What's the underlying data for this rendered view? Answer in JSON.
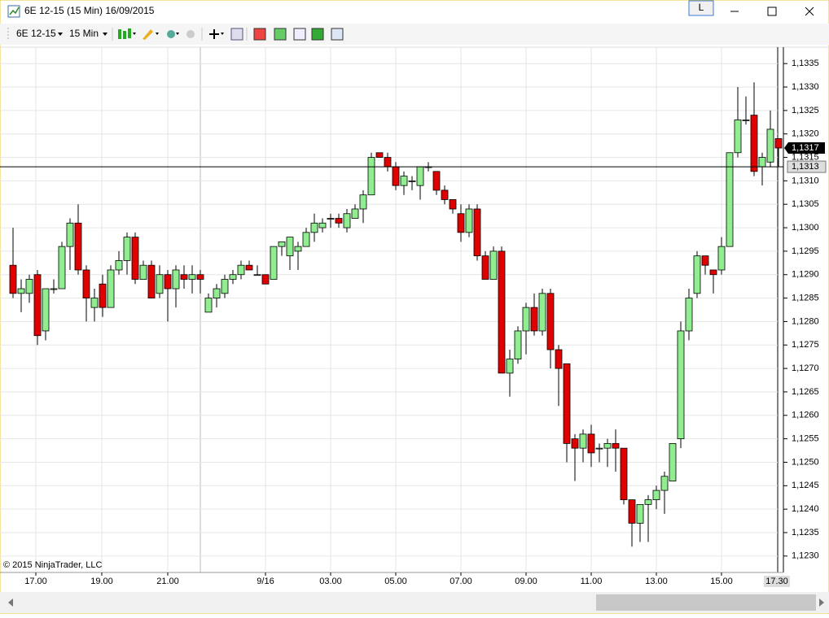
{
  "window": {
    "title": "6E 12-15 (15 Min)  16/09/2015",
    "link_button": "L"
  },
  "toolbar": {
    "instrument": "6E 12-15",
    "interval": "15 Min"
  },
  "chart_data": {
    "type": "candlestick",
    "copyright": "© 2015 NinjaTrader, LLC",
    "up_color": "#90ee90",
    "down_color": "#e00000",
    "grid": true,
    "open": [
      1.1292,
      1.1286,
      1.1286,
      1.129,
      1.1278,
      1.1287,
      1.1287,
      1.1296,
      1.1301,
      1.1291,
      1.1283,
      1.1288,
      1.1283,
      1.1291,
      1.1293,
      1.1298,
      1.1289,
      1.1292,
      1.1286,
      1.129,
      1.1287,
      1.129,
      1.1289,
      1.129,
      1.1282,
      1.1285,
      1.1286,
      1.1289,
      1.129,
      1.1292,
      1.129,
      1.129,
      1.1289,
      1.1296,
      1.1294,
      1.1295,
      1.1296,
      1.1299,
      1.13,
      1.1302,
      1.1302,
      1.13,
      1.1302,
      1.1304,
      1.1307,
      1.1316,
      1.1315,
      1.1313,
      1.1309,
      1.131,
      1.1309,
      1.1313,
      1.1312,
      1.1308,
      1.1306,
      1.1303,
      1.1299,
      1.1304,
      1.1294,
      1.1289,
      1.1295,
      1.1269,
      1.1272,
      1.1278,
      1.1283,
      1.1278,
      1.1286,
      1.1274,
      1.1271,
      1.1255,
      1.1253,
      1.1256,
      1.1253,
      1.1253,
      1.1254,
      1.1253,
      1.1242,
      1.1237,
      1.1241,
      1.1242,
      1.1244,
      1.1246,
      1.1255,
      1.1278,
      1.1286,
      1.1294,
      1.1291,
      1.1291,
      1.1296,
      1.1316,
      1.1323,
      1.1324,
      1.1313,
      1.1314,
      1.1319
    ],
    "high": [
      1.13,
      1.1289,
      1.129,
      1.1291,
      1.1287,
      1.1289,
      1.1297,
      1.1302,
      1.1305,
      1.1292,
      1.1287,
      1.129,
      1.1292,
      1.1295,
      1.1299,
      1.1299,
      1.1293,
      1.1293,
      1.1292,
      1.1291,
      1.1292,
      1.1292,
      1.1292,
      1.1291,
      1.1286,
      1.1288,
      1.129,
      1.1291,
      1.1293,
      1.1293,
      1.1292,
      1.129,
      1.1296,
      1.1297,
      1.1298,
      1.1297,
      1.13,
      1.1303,
      1.1302,
      1.1303,
      1.1303,
      1.1304,
      1.1305,
      1.1308,
      1.1316,
      1.1316,
      1.1316,
      1.1314,
      1.1312,
      1.1311,
      1.1313,
      1.1314,
      1.1312,
      1.1309,
      1.1306,
      1.1305,
      1.1305,
      1.1305,
      1.1295,
      1.1296,
      1.1296,
      1.1274,
      1.1279,
      1.1284,
      1.1286,
      1.1287,
      1.1287,
      1.1275,
      1.1271,
      1.1256,
      1.1257,
      1.1258,
      1.1254,
      1.1255,
      1.1257,
      1.1253,
      1.1242,
      1.1241,
      1.1243,
      1.1245,
      1.1248,
      1.1254,
      1.128,
      1.1287,
      1.1295,
      1.1294,
      1.1291,
      1.1298,
      1.1316,
      1.133,
      1.1328,
      1.1331,
      1.1316,
      1.1325,
      1.1319
    ],
    "low": [
      1.1285,
      1.1282,
      1.1284,
      1.1275,
      1.1276,
      1.1286,
      1.1287,
      1.1291,
      1.129,
      1.128,
      1.128,
      1.1281,
      1.1283,
      1.129,
      1.129,
      1.1288,
      1.1289,
      1.1285,
      1.1285,
      1.128,
      1.1283,
      1.1287,
      1.1286,
      1.1286,
      1.1282,
      1.1283,
      1.1285,
      1.1288,
      1.1289,
      1.1291,
      1.129,
      1.1288,
      1.1289,
      1.1294,
      1.1291,
      1.1291,
      1.1296,
      1.1297,
      1.1299,
      1.13,
      1.13,
      1.1299,
      1.1302,
      1.1301,
      1.1307,
      1.1315,
      1.1312,
      1.1308,
      1.1307,
      1.1308,
      1.1306,
      1.1312,
      1.1307,
      1.1305,
      1.1303,
      1.1297,
      1.1298,
      1.1293,
      1.1289,
      1.1289,
      1.1269,
      1.1264,
      1.1271,
      1.1273,
      1.1277,
      1.1277,
      1.127,
      1.1262,
      1.125,
      1.1246,
      1.125,
      1.1249,
      1.125,
      1.1249,
      1.1248,
      1.1241,
      1.1232,
      1.1233,
      1.1233,
      1.124,
      1.1239,
      1.1246,
      1.1253,
      1.1276,
      1.1285,
      1.129,
      1.1286,
      1.129,
      1.1296,
      1.1315,
      1.1322,
      1.1311,
      1.1309,
      1.1313,
      1.1313
    ],
    "close": [
      1.1286,
      1.1287,
      1.1289,
      1.1277,
      1.1287,
      1.1287,
      1.1296,
      1.1301,
      1.1291,
      1.1285,
      1.1285,
      1.1283,
      1.1291,
      1.1293,
      1.1298,
      1.1289,
      1.1292,
      1.1285,
      1.129,
      1.1287,
      1.1291,
      1.1289,
      1.129,
      1.1289,
      1.1285,
      1.1287,
      1.1289,
      1.129,
      1.1292,
      1.1291,
      1.129,
      1.1288,
      1.1296,
      1.1297,
      1.1298,
      1.1296,
      1.1299,
      1.1301,
      1.1301,
      1.1302,
      1.1301,
      1.1303,
      1.1304,
      1.1307,
      1.1315,
      1.1315,
      1.1313,
      1.1309,
      1.1311,
      1.131,
      1.1313,
      1.1313,
      1.1308,
      1.1306,
      1.1304,
      1.1299,
      1.1304,
      1.1294,
      1.1289,
      1.1295,
      1.1269,
      1.1272,
      1.1278,
      1.1283,
      1.1278,
      1.1286,
      1.1274,
      1.127,
      1.1254,
      1.1253,
      1.1256,
      1.1252,
      1.1253,
      1.1254,
      1.1253,
      1.1242,
      1.1237,
      1.1241,
      1.1242,
      1.1244,
      1.1247,
      1.1254,
      1.1278,
      1.1285,
      1.1294,
      1.1292,
      1.129,
      1.1296,
      1.1316,
      1.1323,
      1.1323,
      1.1312,
      1.1315,
      1.1321,
      1.1317
    ],
    "ylim": [
      1.12265,
      1.13385
    ],
    "yticks": [
      {
        "value": 1.123,
        "label": "1,1230"
      },
      {
        "value": 1.1235,
        "label": "1,1235"
      },
      {
        "value": 1.124,
        "label": "1,1240"
      },
      {
        "value": 1.1245,
        "label": "1,1245"
      },
      {
        "value": 1.125,
        "label": "1,1250"
      },
      {
        "value": 1.1255,
        "label": "1,1255"
      },
      {
        "value": 1.126,
        "label": "1,1260"
      },
      {
        "value": 1.1265,
        "label": "1,1265"
      },
      {
        "value": 1.127,
        "label": "1,1270"
      },
      {
        "value": 1.1275,
        "label": "1,1275"
      },
      {
        "value": 1.128,
        "label": "1,1280"
      },
      {
        "value": 1.1285,
        "label": "1,1285"
      },
      {
        "value": 1.129,
        "label": "1,1290"
      },
      {
        "value": 1.1295,
        "label": "1,1295"
      },
      {
        "value": 1.13,
        "label": "1,1300"
      },
      {
        "value": 1.1305,
        "label": "1,1305"
      },
      {
        "value": 1.131,
        "label": "1,1310"
      },
      {
        "value": 1.1315,
        "label": "1,1315"
      },
      {
        "value": 1.132,
        "label": "1,1320"
      },
      {
        "value": 1.1325,
        "label": "1,1325"
      },
      {
        "value": 1.133,
        "label": "1,1330"
      },
      {
        "value": 1.1335,
        "label": "1,1335"
      }
    ],
    "xticks": [
      {
        "value": 2.8,
        "label": "17.00"
      },
      {
        "value": 10.9,
        "label": "19.00"
      },
      {
        "value": 19,
        "label": "21.00"
      },
      {
        "value": 31,
        "label": "9/16"
      },
      {
        "value": 39,
        "label": "03.00"
      },
      {
        "value": 47,
        "label": "05.00"
      },
      {
        "value": 55,
        "label": "07.00"
      },
      {
        "value": 63,
        "label": "09.00"
      },
      {
        "value": 71,
        "label": "11.00"
      },
      {
        "value": 79,
        "label": "13.00"
      },
      {
        "value": 87,
        "label": "15.00"
      }
    ],
    "cursor_time": {
      "value": 93.8,
      "label": "17.30"
    },
    "last_price": {
      "value": 1.1317,
      "label": "1,1317"
    },
    "cursor_price": {
      "value": 1.1313,
      "label": "1,1313"
    }
  }
}
